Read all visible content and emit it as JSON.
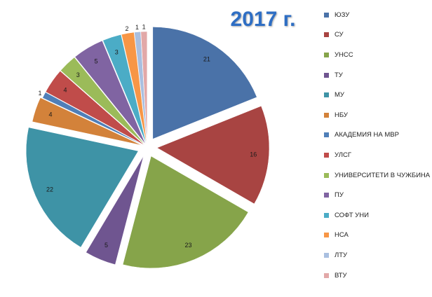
{
  "chart_data": {
    "type": "pie",
    "title": "2017 г.",
    "legend_position": "right",
    "slices": [
      {
        "label": "ЮЗУ",
        "value": 21,
        "color": "#4a72a8"
      },
      {
        "label": "СУ",
        "value": 16,
        "color": "#a84442"
      },
      {
        "label": "УНСС",
        "value": 23,
        "color": "#86a44a"
      },
      {
        "label": "ТУ",
        "value": 5,
        "color": "#6f5590"
      },
      {
        "label": "МУ",
        "value": 22,
        "color": "#3e93a6"
      },
      {
        "label": "НБУ",
        "value": 4,
        "color": "#d3823a"
      },
      {
        "label": "АКАДЕМИЯ НА МВР",
        "value": 1,
        "color": "#4f7fb8"
      },
      {
        "label": "УЛСГ",
        "value": 4,
        "color": "#c04c4a"
      },
      {
        "label": "УНИВЕРСИТЕТИ В ЧУЖБИНА",
        "value": 3,
        "color": "#9bbb59"
      },
      {
        "label": "ПУ",
        "value": 5,
        "color": "#8064a2"
      },
      {
        "label": "СОФТ УНИ",
        "value": 3,
        "color": "#4bacc6"
      },
      {
        "label": "НСА",
        "value": 2,
        "color": "#f79646"
      },
      {
        "label": "ЛТУ",
        "value": 1,
        "color": "#a9bfe0"
      },
      {
        "label": "ВТУ",
        "value": 1,
        "color": "#e2a8a8"
      }
    ]
  }
}
